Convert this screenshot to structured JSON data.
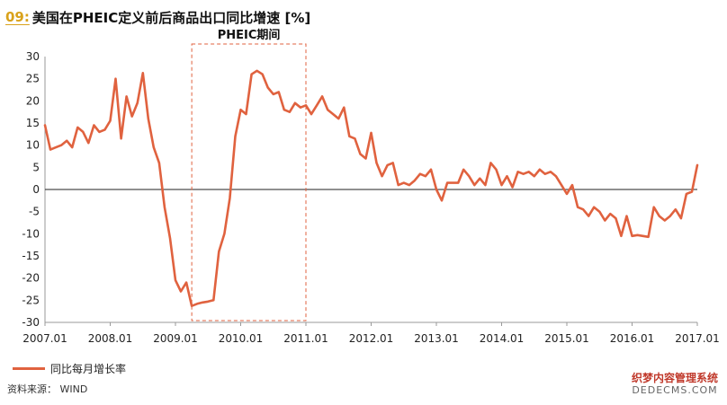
{
  "header": {
    "number": "09:",
    "title": "美国在PHEIC定义前后商品出口同比增速 [%]"
  },
  "footer": {
    "source": "资料来源： WIND",
    "watermark_line1": "织梦内容管理系统",
    "watermark_line2": "DEDECMS.COM"
  },
  "chart_data": {
    "type": "line",
    "title": "美国在PHEIC定义前后商品出口同比增速 [%]",
    "xlabel": "",
    "ylabel": "",
    "ylim": [
      -30,
      30
    ],
    "yticks": [
      30,
      25,
      20,
      15,
      10,
      5,
      0,
      -5,
      -10,
      -15,
      -20,
      -25,
      -30
    ],
    "xlim": [
      "2007.01",
      "2017.01"
    ],
    "xticks": [
      "2007.01",
      "2008.01",
      "2009.01",
      "2010.01",
      "2011.01",
      "2012.01",
      "2013.01",
      "2014.01",
      "2015.01",
      "2016.01",
      "2017.01"
    ],
    "grid": false,
    "legend_position": "bottom-left",
    "annotation": {
      "label": "PHEIC期间",
      "x_start": "2009.04",
      "x_end": "2011.01"
    },
    "series": [
      {
        "name": "同比每月增长率",
        "color": "#e0623f",
        "x": [
          "2007.01",
          "2007.02",
          "2007.03",
          "2007.04",
          "2007.05",
          "2007.06",
          "2007.07",
          "2007.08",
          "2007.09",
          "2007.10",
          "2007.11",
          "2007.12",
          "2008.01",
          "2008.02",
          "2008.03",
          "2008.04",
          "2008.05",
          "2008.06",
          "2008.07",
          "2008.08",
          "2008.09",
          "2008.10",
          "2008.11",
          "2008.12",
          "2009.01",
          "2009.02",
          "2009.03",
          "2009.04",
          "2009.05",
          "2009.06",
          "2009.07",
          "2009.08",
          "2009.09",
          "2009.10",
          "2009.11",
          "2009.12",
          "2010.01",
          "2010.02",
          "2010.03",
          "2010.04",
          "2010.05",
          "2010.06",
          "2010.07",
          "2010.08",
          "2010.09",
          "2010.10",
          "2010.11",
          "2010.12",
          "2011.01",
          "2011.02",
          "2011.03",
          "2011.04",
          "2011.05",
          "2011.06",
          "2011.07",
          "2011.08",
          "2011.09",
          "2011.10",
          "2011.11",
          "2011.12",
          "2012.01",
          "2012.02",
          "2012.03",
          "2012.04",
          "2012.05",
          "2012.06",
          "2012.07",
          "2012.08",
          "2012.09",
          "2012.10",
          "2012.11",
          "2012.12",
          "2013.01",
          "2013.02",
          "2013.03",
          "2013.04",
          "2013.05",
          "2013.06",
          "2013.07",
          "2013.08",
          "2013.09",
          "2013.10",
          "2013.11",
          "2013.12",
          "2014.01",
          "2014.02",
          "2014.03",
          "2014.04",
          "2014.05",
          "2014.06",
          "2014.07",
          "2014.08",
          "2014.09",
          "2014.10",
          "2014.11",
          "2014.12",
          "2015.01",
          "2015.02",
          "2015.03",
          "2015.04",
          "2015.05",
          "2015.06",
          "2015.07",
          "2015.08",
          "2015.09",
          "2015.10",
          "2015.11",
          "2015.12",
          "2016.01",
          "2016.02",
          "2016.03",
          "2016.04",
          "2016.05",
          "2016.06",
          "2016.07",
          "2016.08",
          "2016.09",
          "2016.10",
          "2016.11",
          "2016.12"
        ],
        "values": [
          14.5,
          9,
          9.5,
          10,
          11,
          9.5,
          14,
          13,
          10.5,
          14.5,
          13,
          13.5,
          15.5,
          25,
          11.5,
          21,
          16.5,
          19.5,
          26.3,
          16,
          9.5,
          6,
          -4,
          -11,
          -20.5,
          -23,
          -21,
          -26.3,
          -25.8,
          -25.5,
          -25.3,
          -25,
          -14,
          -10,
          -2,
          12,
          18,
          17,
          26,
          26.8,
          26,
          23,
          21.5,
          22,
          18,
          17.5,
          19.5,
          18.5,
          19,
          17,
          19,
          21,
          18,
          17,
          16,
          18.5,
          12,
          11.5,
          8,
          7,
          12.8,
          6,
          3,
          5.5,
          6,
          1,
          1.5,
          1,
          2,
          3.5,
          3,
          4.5,
          0,
          -2.5,
          1.5,
          1.5,
          1.5,
          4.5,
          3,
          1,
          2.5,
          1,
          6,
          4.5,
          1,
          3,
          0.5,
          4,
          3.5,
          4,
          3,
          4.5,
          3.5,
          4,
          3,
          1,
          -1,
          1,
          -4,
          -4.5,
          -6,
          -4,
          -5,
          -7,
          -5.5,
          -6.5,
          -10.5,
          -6,
          -10.5,
          -10.3,
          -10.5,
          -10.7,
          -4,
          -6,
          -7,
          -6,
          -4.5,
          -6.5,
          -1,
          -0.5
        ]
      }
    ],
    "line_end": {
      "x": "2017.01",
      "value": 5.5
    }
  }
}
